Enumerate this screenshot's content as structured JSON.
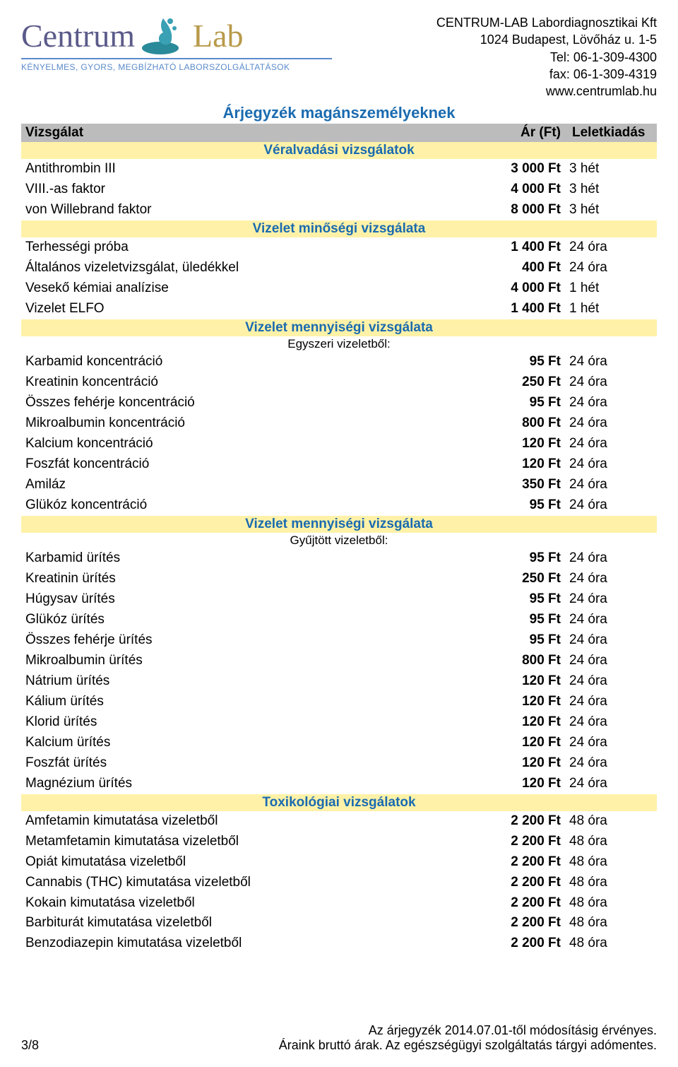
{
  "company": {
    "name": "CENTRUM-LAB Labordiagnosztikai Kft",
    "address": "1024 Budapest, Lövőház u. 1-5",
    "tel": "Tel: 06-1-309-4300",
    "fax": "fax: 06-1-309-4319",
    "web": "www.centrumlab.hu"
  },
  "logo": {
    "left": "Centrum",
    "right": "Lab",
    "tagline": "KÉNYELMES, GYORS, MEGBÍZHATÓ LABORSZOLGÁLTATÁSOK"
  },
  "title": "Árjegyzék magánszemélyeknek",
  "columns": {
    "name": "Vizsgálat",
    "price": "Ár (Ft)",
    "time": "Leletkiadás"
  },
  "colors": {
    "header_bg": "#bcbcbc",
    "section_bg": "#fff2a8",
    "section_fg": "#1a6bb0",
    "title_fg": "#1a6bb0"
  },
  "sections": [
    {
      "heading": "Véralvadási vizsgálatok",
      "rows": [
        {
          "name": "Antithrombin III",
          "price": "3 000 Ft",
          "time": "3 hét"
        },
        {
          "name": "VIII.-as faktor",
          "price": "4 000 Ft",
          "time": "3 hét"
        },
        {
          "name": "von Willebrand faktor",
          "price": "8 000 Ft",
          "time": "3 hét"
        }
      ]
    },
    {
      "heading": "Vizelet minőségi vizsgálata",
      "rows": [
        {
          "name": "Terhességi próba",
          "price": "1 400 Ft",
          "time": "24 óra"
        },
        {
          "name": "Általános vizeletvizsgálat, üledékkel",
          "price": "400 Ft",
          "time": "24 óra"
        },
        {
          "name": "Vesekő kémiai analízise",
          "price": "4 000 Ft",
          "time": "1 hét"
        },
        {
          "name": "Vizelet ELFO",
          "price": "1 400 Ft",
          "time": "1 hét"
        }
      ]
    },
    {
      "heading": "Vizelet mennyiségi vizsgálata",
      "note": "Egyszeri vizeletből:",
      "rows": [
        {
          "name": "Karbamid  koncentráció",
          "price": "95 Ft",
          "time": "24 óra"
        },
        {
          "name": "Kreatinin  koncentráció",
          "price": "250 Ft",
          "time": "24 óra"
        },
        {
          "name": "Összes fehérje koncentráció",
          "price": "95 Ft",
          "time": "24 óra"
        },
        {
          "name": "Mikroalbumin koncentráció",
          "price": "800 Ft",
          "time": "24 óra"
        },
        {
          "name": "Kalcium koncentráció",
          "price": "120 Ft",
          "time": "24 óra"
        },
        {
          "name": "Foszfát koncentráció",
          "price": "120 Ft",
          "time": "24 óra"
        },
        {
          "name": "Amiláz",
          "price": "350 Ft",
          "time": "24 óra"
        },
        {
          "name": "Glükóz koncentráció",
          "price": "95 Ft",
          "time": "24 óra"
        }
      ]
    },
    {
      "heading": "Vizelet mennyiségi vizsgálata",
      "note": "Gyűjtött vizeletből:",
      "rows": [
        {
          "name": "Karbamid ürítés",
          "price": "95 Ft",
          "time": "24 óra"
        },
        {
          "name": "Kreatinin ürítés",
          "price": "250 Ft",
          "time": "24 óra"
        },
        {
          "name": "Húgysav ürítés",
          "price": "95 Ft",
          "time": "24 óra"
        },
        {
          "name": "Glükóz ürítés",
          "price": "95 Ft",
          "time": "24 óra"
        },
        {
          "name": "Összes fehérje ürítés",
          "price": "95 Ft",
          "time": "24 óra"
        },
        {
          "name": "Mikroalbumin ürítés",
          "price": "800 Ft",
          "time": "24 óra"
        },
        {
          "name": "Nátrium ürítés",
          "price": "120 Ft",
          "time": "24 óra"
        },
        {
          "name": "Kálium ürítés",
          "price": "120 Ft",
          "time": "24 óra"
        },
        {
          "name": "Klorid ürítés",
          "price": "120 Ft",
          "time": "24 óra"
        },
        {
          "name": "Kalcium ürítés",
          "price": "120 Ft",
          "time": "24 óra"
        },
        {
          "name": "Foszfát ürítés",
          "price": "120 Ft",
          "time": "24 óra"
        },
        {
          "name": "Magnézium ürítés",
          "price": "120 Ft",
          "time": "24 óra"
        }
      ]
    },
    {
      "heading": "Toxikológiai vizsgálatok",
      "rows": [
        {
          "name": "Amfetamin kimutatása vizeletből",
          "price": "2 200 Ft",
          "time": "48 óra"
        },
        {
          "name": "Metamfetamin kimutatása vizeletből",
          "price": "2 200 Ft",
          "time": "48 óra"
        },
        {
          "name": "Opiát kimutatása vizeletből",
          "price": "2 200 Ft",
          "time": "48 óra"
        },
        {
          "name": "Cannabis (THC) kimutatása vizeletből",
          "price": "2 200 Ft",
          "time": "48 óra"
        },
        {
          "name": "Kokain kimutatása vizeletből",
          "price": "2 200 Ft",
          "time": "48 óra"
        },
        {
          "name": "Barbiturát kimutatása vizeletből",
          "price": "2 200 Ft",
          "time": "48 óra"
        },
        {
          "name": "Benzodiazepin kimutatása vizeletből",
          "price": "2 200 Ft",
          "time": "48 óra"
        }
      ]
    }
  ],
  "footer": {
    "page": "3/8",
    "line1": "Az árjegyzék 2014.07.01-től módosításig érvényes.",
    "line2": "Áraink bruttó árak. Az egészségügyi szolgáltatás tárgyi adómentes."
  }
}
